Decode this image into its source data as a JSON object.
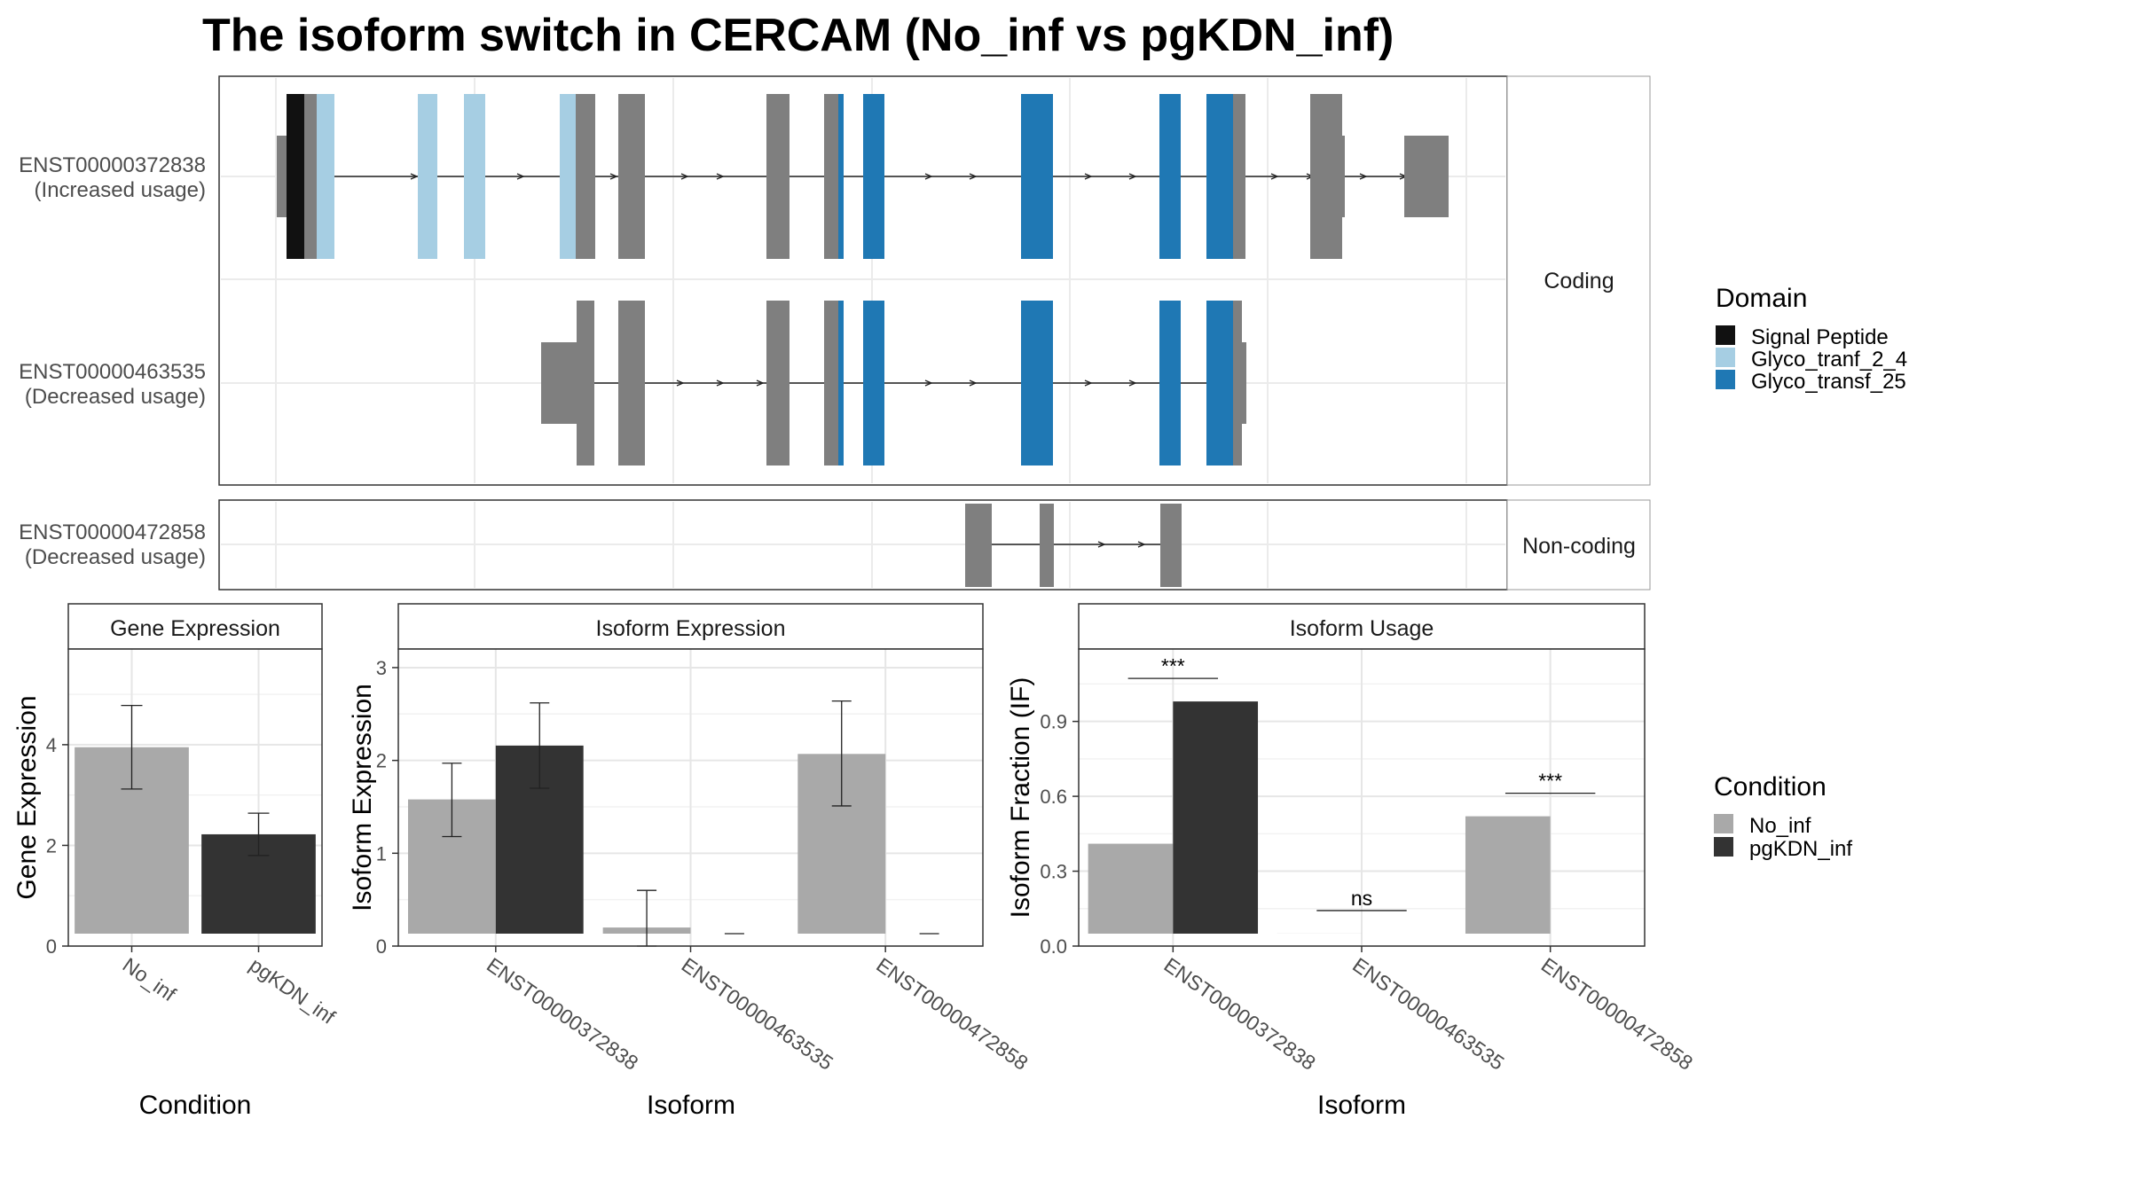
{
  "title": "The isoform switch in CERCAM (No_inf vs pgKDN_inf)",
  "isoform_panels": {
    "coding_label": "Coding",
    "noncoding_label": "Non-coding",
    "isoforms": [
      {
        "id": "ENST00000372838",
        "usage": "(Increased usage)",
        "group": "Coding"
      },
      {
        "id": "ENST00000463535",
        "usage": "(Decreased usage)",
        "group": "Coding"
      },
      {
        "id": "ENST00000472858",
        "usage": "(Decreased usage)",
        "group": "Non-coding"
      }
    ]
  },
  "domain_legend": {
    "title": "Domain",
    "items": [
      {
        "label": "Signal Peptide",
        "color": "#111111"
      },
      {
        "label": "Glyco_tranf_2_4",
        "color": "#a6cee3"
      },
      {
        "label": "Glyco_transf_25",
        "color": "#1f78b4"
      }
    ]
  },
  "condition_legend": {
    "title": "Condition",
    "items": [
      {
        "label": "No_inf",
        "color": "#a9a9a9"
      },
      {
        "label": "pgKDN_inf",
        "color": "#333333"
      }
    ]
  },
  "chart_data": [
    {
      "type": "bar",
      "title": "Gene Expression",
      "xlabel": "Condition",
      "ylabel": "Gene Expression",
      "ylim": [
        0,
        5.9
      ],
      "yticks": [
        0,
        2,
        4
      ],
      "categories": [
        "No_inf",
        "pgKDN_inf"
      ],
      "values": [
        3.95,
        2.22
      ],
      "errors": [
        [
          3.12,
          4.78
        ],
        [
          1.8,
          2.64
        ]
      ],
      "colors": [
        "#a9a9a9",
        "#333333"
      ]
    },
    {
      "type": "bar",
      "title": "Isoform Expression",
      "xlabel": "Isoform",
      "ylabel": "Isoform Expression",
      "ylim": [
        0,
        3.2
      ],
      "yticks": [
        0,
        1,
        2,
        3
      ],
      "categories": [
        "ENST00000372838",
        "ENST00000463535",
        "ENST00000472858"
      ],
      "series": [
        {
          "name": "No_inf",
          "values": [
            1.58,
            0.2,
            2.07
          ],
          "errors": [
            [
              1.18,
              1.97
            ],
            [
              0,
              0.6
            ],
            [
              1.51,
              2.64
            ]
          ]
        },
        {
          "name": "pgKDN_inf",
          "values": [
            2.16,
            0.0,
            0.0
          ],
          "errors": [
            [
              1.7,
              2.62
            ],
            null,
            null
          ]
        }
      ]
    },
    {
      "type": "bar",
      "title": "Isoform Usage",
      "xlabel": "Isoform",
      "ylabel": "Isoform Fraction (IF)",
      "ylim": [
        0,
        1.19
      ],
      "yticks": [
        "0.0",
        "0.3",
        "0.6",
        "0.9"
      ],
      "categories": [
        "ENST00000372838",
        "ENST00000463535",
        "ENST00000472858"
      ],
      "series": [
        {
          "name": "No_inf",
          "values": [
            0.41,
            0.05,
            0.52
          ]
        },
        {
          "name": "pgKDN_inf",
          "values": [
            0.98,
            0.0,
            0.0
          ]
        }
      ],
      "significance": [
        "***",
        "ns",
        "***"
      ]
    }
  ]
}
